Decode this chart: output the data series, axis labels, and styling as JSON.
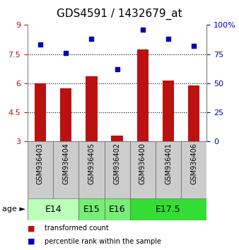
{
  "title": "GDS4591 / 1432679_at",
  "samples": [
    "GSM936403",
    "GSM936404",
    "GSM936405",
    "GSM936402",
    "GSM936400",
    "GSM936401",
    "GSM936406"
  ],
  "transformed_count": [
    6.0,
    5.72,
    6.35,
    3.28,
    7.75,
    6.12,
    5.88
  ],
  "percentile_rank": [
    83,
    76,
    88,
    62,
    96,
    88,
    82
  ],
  "ylim_left": [
    3,
    9
  ],
  "ylim_right": [
    0,
    100
  ],
  "yticks_left": [
    3,
    4.5,
    6,
    7.5,
    9
  ],
  "yticks_right": [
    0,
    25,
    50,
    75,
    100
  ],
  "ytick_labels_right": [
    "0",
    "25",
    "50",
    "75",
    "100%"
  ],
  "bar_color": "#bb1111",
  "dot_color": "#0000bb",
  "hline_color": "#000000",
  "hline_values": [
    4.5,
    6.0,
    7.5
  ],
  "background_color": "#ffffff",
  "age_groups": [
    {
      "label": "E14",
      "samples": [
        0,
        1
      ],
      "color": "#ccffcc"
    },
    {
      "label": "E15",
      "samples": [
        2
      ],
      "color": "#88ee88"
    },
    {
      "label": "E16",
      "samples": [
        3
      ],
      "color": "#88ee88"
    },
    {
      "label": "E17.5",
      "samples": [
        4,
        5,
        6
      ],
      "color": "#44dd44"
    }
  ],
  "sample_box_color": "#cccccc",
  "title_fontsize": 11,
  "tick_fontsize": 8,
  "sample_label_fontsize": 7,
  "age_label_fontsize": 9,
  "legend_fontsize": 7
}
